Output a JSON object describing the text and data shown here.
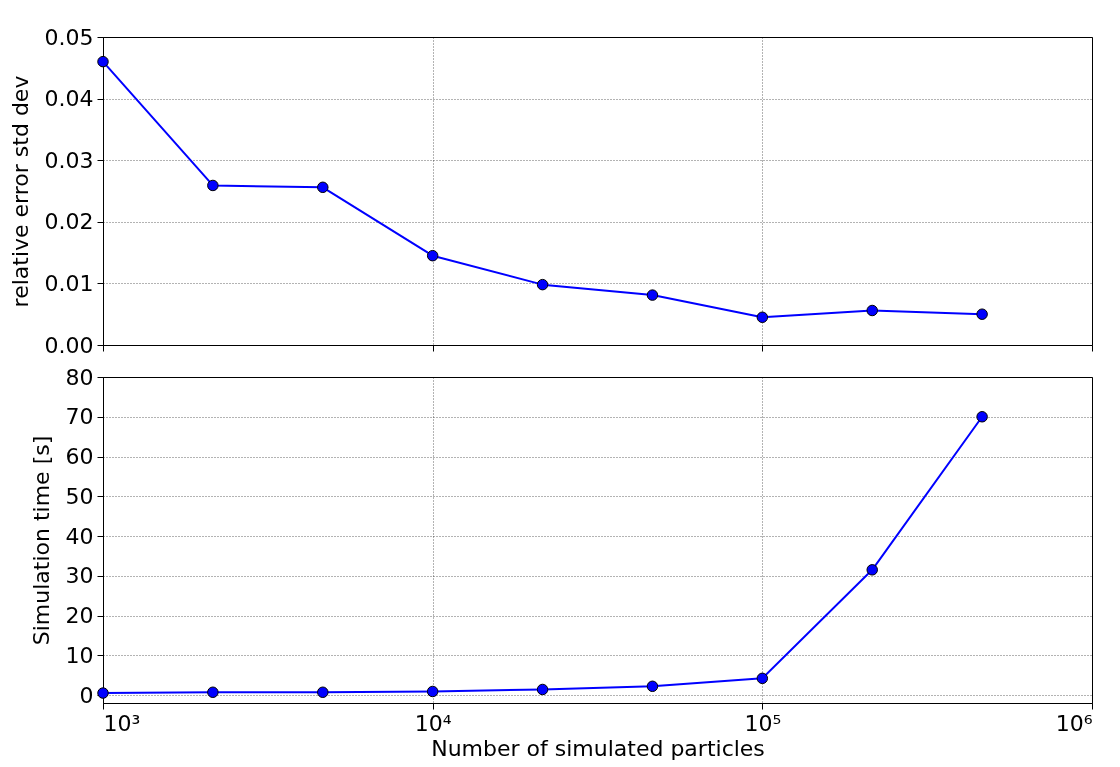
{
  "chart_data": [
    {
      "type": "line",
      "ylabel": "relative error std dev",
      "x": [
        1000,
        2154,
        4642,
        10000,
        21544,
        46416,
        100000,
        215443,
        464159
      ],
      "series": [
        {
          "color": "#0000ff",
          "values": [
            0.046,
            0.0259,
            0.0256,
            0.0145,
            0.0098,
            0.0081,
            0.0045,
            0.0056,
            0.005
          ]
        }
      ],
      "log": "x",
      "xlim": [
        1000,
        1000000
      ],
      "xticks": [
        {
          "value": 1000,
          "label": null
        },
        {
          "value": 10000,
          "label": null
        },
        {
          "value": 100000,
          "label": null
        },
        {
          "value": 1000000,
          "label": null
        }
      ],
      "ylim": [
        0,
        0.05
      ],
      "yticks": [
        {
          "value": 0,
          "label": "0.00"
        },
        {
          "value": 0.01,
          "label": "0.01"
        },
        {
          "value": 0.02,
          "label": "0.02"
        },
        {
          "value": 0.03,
          "label": "0.03"
        },
        {
          "value": 0.04,
          "label": "0.04"
        },
        {
          "value": 0.05,
          "label": "0.05"
        }
      ],
      "grid": true,
      "marker": "circle",
      "line_style": "solid",
      "tick_labels": "y"
    },
    {
      "type": "line",
      "xlabel": "Number of simulated particles",
      "ylabel": "Simulation time [s]",
      "x": [
        1000,
        2154,
        4642,
        10000,
        21544,
        46416,
        100000,
        215443,
        464159
      ],
      "series": [
        {
          "color": "#0000ff",
          "values": [
            0.5,
            0.7,
            0.7,
            0.9,
            1.4,
            2.2,
            4.2,
            31.5,
            70
          ]
        }
      ],
      "log": "x",
      "xlim": [
        1000,
        1000000
      ],
      "xticks": [
        {
          "value": 1000,
          "label": "10³"
        },
        {
          "value": 10000,
          "label": "10⁴"
        },
        {
          "value": 100000,
          "label": "10⁵"
        },
        {
          "value": 1000000,
          "label": "10⁶"
        }
      ],
      "ylim": [
        -2,
        80
      ],
      "yticks": [
        0,
        10,
        20,
        30,
        40,
        50,
        60,
        70,
        80
      ],
      "grid": true,
      "marker": "circle",
      "line_style": "solid"
    }
  ]
}
